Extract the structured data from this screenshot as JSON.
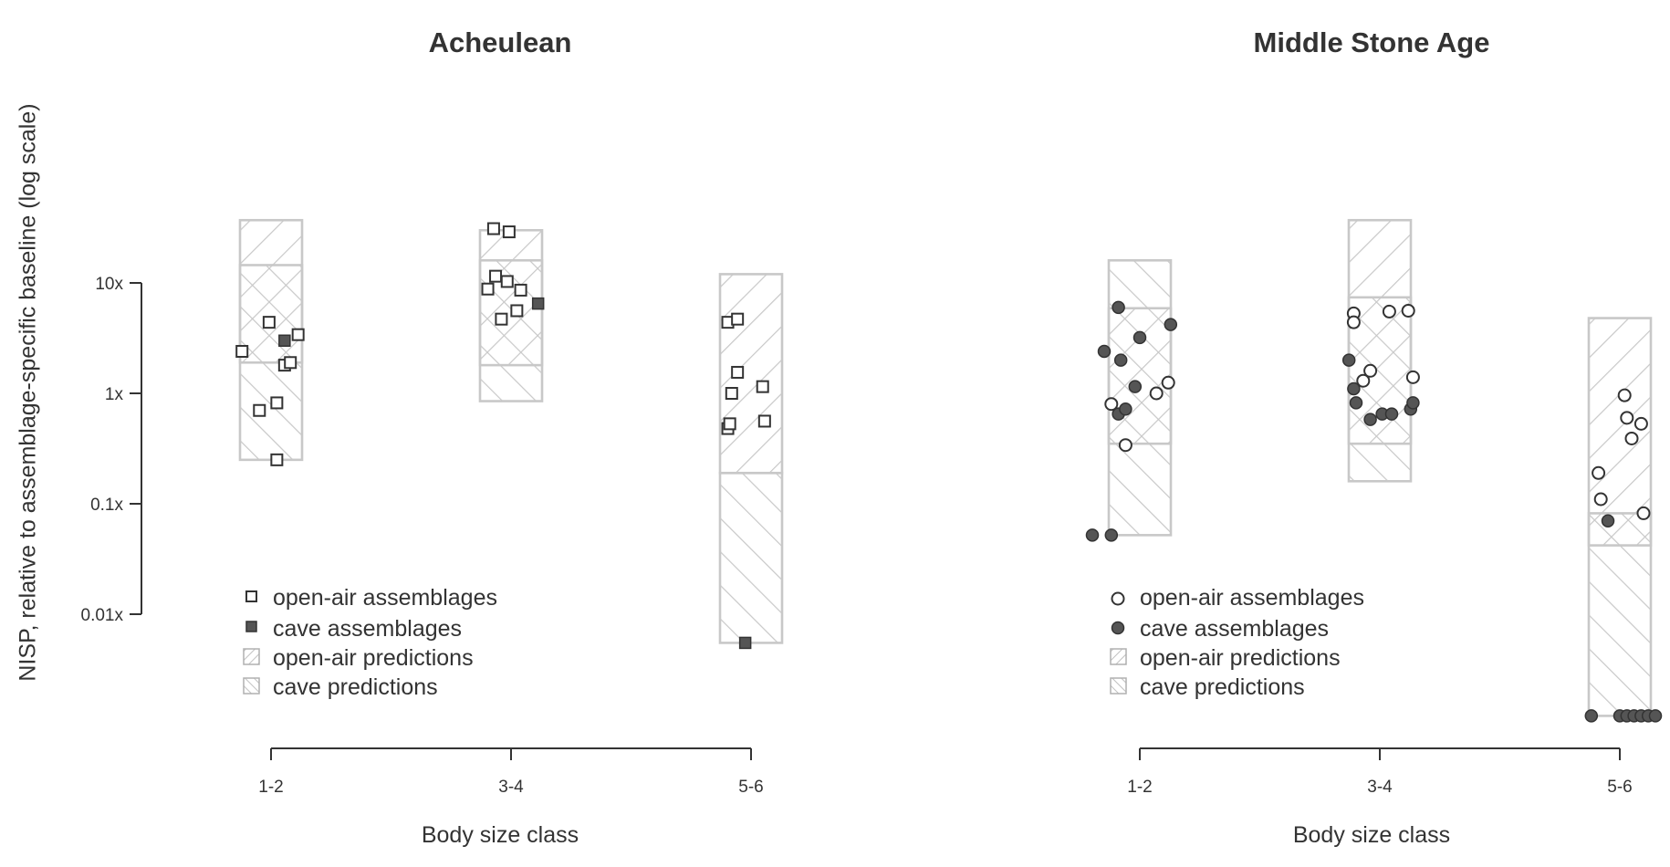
{
  "ylabel": "NISP, relative to assemblage-specific baseline (log scale)",
  "legend_placement": "bottom-left",
  "colors": {
    "axis": "#333333",
    "box": "#c8c8c8",
    "open_marker_fill": "#ffffff",
    "cave_marker_fill": "#555555",
    "marker_stroke": "#333333"
  },
  "chart_data": [
    {
      "type": "scatter",
      "title": "Acheulean",
      "xlabel": "Body size class",
      "ylabel": "NISP, relative to assemblage-specific baseline (log scale)",
      "y_scale": "log",
      "ylim": [
        0.0009,
        200
      ],
      "grid": false,
      "categories": [
        "1-2",
        "3-4",
        "5-6"
      ],
      "y_ticks": [
        {
          "value": 0.01,
          "label": "0.01x"
        },
        {
          "value": 0.1,
          "label": "0.1x"
        },
        {
          "value": 1,
          "label": "1x"
        },
        {
          "value": 10,
          "label": "10x"
        }
      ],
      "marker": "square",
      "legend": [
        {
          "key": "open",
          "label": "open-air assemblages"
        },
        {
          "key": "cave",
          "label": "cave assemblages"
        },
        {
          "key": "open_pred",
          "label": "open-air predictions"
        },
        {
          "key": "cave_pred",
          "label": "cave predictions"
        }
      ],
      "predictions": {
        "open_air": [
          [
            1.9,
            37
          ],
          [
            1.8,
            30
          ],
          [
            0.19,
            12
          ]
        ],
        "cave": [
          [
            0.25,
            14.5
          ],
          [
            0.85,
            16
          ],
          [
            0.0055,
            0.19
          ]
        ]
      },
      "series": [
        {
          "name": "open-air assemblages",
          "points": [
            {
              "category": "1-2",
              "jitter": -0.15,
              "y": 2.4
            },
            {
              "category": "1-2",
              "jitter": -0.06,
              "y": 0.7
            },
            {
              "category": "1-2",
              "jitter": -0.01,
              "y": 4.4
            },
            {
              "category": "1-2",
              "jitter": 0.03,
              "y": 0.82
            },
            {
              "category": "1-2",
              "jitter": 0.03,
              "y": 0.25
            },
            {
              "category": "1-2",
              "jitter": 0.07,
              "y": 1.8
            },
            {
              "category": "1-2",
              "jitter": 0.1,
              "y": 1.9
            },
            {
              "category": "1-2",
              "jitter": 0.14,
              "y": 3.4
            },
            {
              "category": "3-4",
              "jitter": -0.12,
              "y": 8.8
            },
            {
              "category": "3-4",
              "jitter": -0.09,
              "y": 31
            },
            {
              "category": "3-4",
              "jitter": -0.08,
              "y": 11.5
            },
            {
              "category": "3-4",
              "jitter": -0.05,
              "y": 4.7
            },
            {
              "category": "3-4",
              "jitter": -0.02,
              "y": 10.3
            },
            {
              "category": "3-4",
              "jitter": -0.01,
              "y": 29
            },
            {
              "category": "3-4",
              "jitter": 0.03,
              "y": 5.6
            },
            {
              "category": "3-4",
              "jitter": 0.05,
              "y": 8.6
            },
            {
              "category": "5-6",
              "jitter": -0.12,
              "y": 4.4
            },
            {
              "category": "5-6",
              "jitter": -0.12,
              "y": 0.48
            },
            {
              "category": "5-6",
              "jitter": -0.11,
              "y": 0.53
            },
            {
              "category": "5-6",
              "jitter": -0.1,
              "y": 1.0
            },
            {
              "category": "5-6",
              "jitter": -0.07,
              "y": 1.55
            },
            {
              "category": "5-6",
              "jitter": -0.07,
              "y": 4.7
            },
            {
              "category": "5-6",
              "jitter": 0.06,
              "y": 1.15
            },
            {
              "category": "5-6",
              "jitter": 0.07,
              "y": 0.56
            }
          ]
        },
        {
          "name": "cave assemblages",
          "points": [
            {
              "category": "1-2",
              "jitter": 0.07,
              "y": 3.0
            },
            {
              "category": "3-4",
              "jitter": 0.14,
              "y": 6.5
            },
            {
              "category": "5-6",
              "jitter": -0.03,
              "y": 0.0055
            }
          ]
        }
      ]
    },
    {
      "type": "scatter",
      "title": "Middle Stone Age",
      "xlabel": "Body size class",
      "ylabel": "NISP, relative to assemblage-specific baseline (log scale)",
      "y_scale": "log",
      "ylim": [
        0.0009,
        200
      ],
      "grid": false,
      "categories": [
        "1-2",
        "3-4",
        "5-6"
      ],
      "marker": "circle",
      "legend": [
        {
          "key": "open",
          "label": "open-air assemblages"
        },
        {
          "key": "cave",
          "label": "cave assemblages"
        },
        {
          "key": "open_pred",
          "label": "open-air predictions"
        },
        {
          "key": "cave_pred",
          "label": "cave predictions"
        }
      ],
      "predictions": {
        "open_air": [
          [
            0.35,
            5.9
          ],
          [
            0.35,
            37
          ],
          [
            0.042,
            4.8
          ]
        ],
        "cave": [
          [
            0.052,
            16
          ],
          [
            0.16,
            7.4
          ],
          [
            0.0012,
            0.082
          ]
        ]
      },
      "series": [
        {
          "name": "open-air assemblages",
          "points": [
            {
              "category": "1-2",
              "jitter": -0.12,
              "y": 0.8
            },
            {
              "category": "1-2",
              "jitter": -0.06,
              "y": 0.34
            },
            {
              "category": "1-2",
              "jitter": 0.07,
              "y": 1.0
            },
            {
              "category": "1-2",
              "jitter": 0.12,
              "y": 1.25
            },
            {
              "category": "3-4",
              "jitter": -0.11,
              "y": 5.3
            },
            {
              "category": "3-4",
              "jitter": -0.11,
              "y": 4.4
            },
            {
              "category": "3-4",
              "jitter": -0.07,
              "y": 1.3
            },
            {
              "category": "3-4",
              "jitter": -0.04,
              "y": 1.6
            },
            {
              "category": "3-4",
              "jitter": 0.04,
              "y": 5.5
            },
            {
              "category": "3-4",
              "jitter": 0.12,
              "y": 5.6
            },
            {
              "category": "3-4",
              "jitter": 0.14,
              "y": 1.4
            },
            {
              "category": "5-6",
              "jitter": -0.09,
              "y": 0.19
            },
            {
              "category": "5-6",
              "jitter": -0.08,
              "y": 0.11
            },
            {
              "category": "5-6",
              "jitter": 0.02,
              "y": 0.96
            },
            {
              "category": "5-6",
              "jitter": 0.03,
              "y": 0.6
            },
            {
              "category": "5-6",
              "jitter": 0.05,
              "y": 0.39
            },
            {
              "category": "5-6",
              "jitter": 0.09,
              "y": 0.53
            },
            {
              "category": "5-6",
              "jitter": 0.1,
              "y": 0.082
            }
          ]
        },
        {
          "name": "cave assemblages",
          "points": [
            {
              "category": "1-2",
              "jitter": -0.2,
              "y": 0.052
            },
            {
              "category": "1-2",
              "jitter": -0.15,
              "y": 2.4
            },
            {
              "category": "1-2",
              "jitter": -0.12,
              "y": 0.052
            },
            {
              "category": "1-2",
              "jitter": -0.09,
              "y": 6.0
            },
            {
              "category": "1-2",
              "jitter": -0.09,
              "y": 0.65
            },
            {
              "category": "1-2",
              "jitter": -0.08,
              "y": 2.0
            },
            {
              "category": "1-2",
              "jitter": -0.06,
              "y": 0.72
            },
            {
              "category": "1-2",
              "jitter": -0.02,
              "y": 1.15
            },
            {
              "category": "1-2",
              "jitter": 0.0,
              "y": 3.2
            },
            {
              "category": "1-2",
              "jitter": 0.13,
              "y": 4.2
            },
            {
              "category": "3-4",
              "jitter": -0.13,
              "y": 2.0
            },
            {
              "category": "3-4",
              "jitter": -0.11,
              "y": 1.1
            },
            {
              "category": "3-4",
              "jitter": -0.1,
              "y": 0.82
            },
            {
              "category": "3-4",
              "jitter": -0.04,
              "y": 0.58
            },
            {
              "category": "3-4",
              "jitter": 0.01,
              "y": 0.65
            },
            {
              "category": "3-4",
              "jitter": 0.05,
              "y": 0.65
            },
            {
              "category": "3-4",
              "jitter": 0.13,
              "y": 0.72
            },
            {
              "category": "3-4",
              "jitter": 0.14,
              "y": 0.82
            },
            {
              "category": "5-6",
              "jitter": -0.12,
              "y": 0.0012
            },
            {
              "category": "5-6",
              "jitter": -0.05,
              "y": 0.07
            },
            {
              "category": "5-6",
              "jitter": 0.0,
              "y": 0.0012
            },
            {
              "category": "5-6",
              "jitter": 0.03,
              "y": 0.0012
            },
            {
              "category": "5-6",
              "jitter": 0.06,
              "y": 0.0012
            },
            {
              "category": "5-6",
              "jitter": 0.09,
              "y": 0.0012
            },
            {
              "category": "5-6",
              "jitter": 0.12,
              "y": 0.0012
            },
            {
              "category": "5-6",
              "jitter": 0.15,
              "y": 0.0012
            }
          ]
        }
      ]
    }
  ]
}
